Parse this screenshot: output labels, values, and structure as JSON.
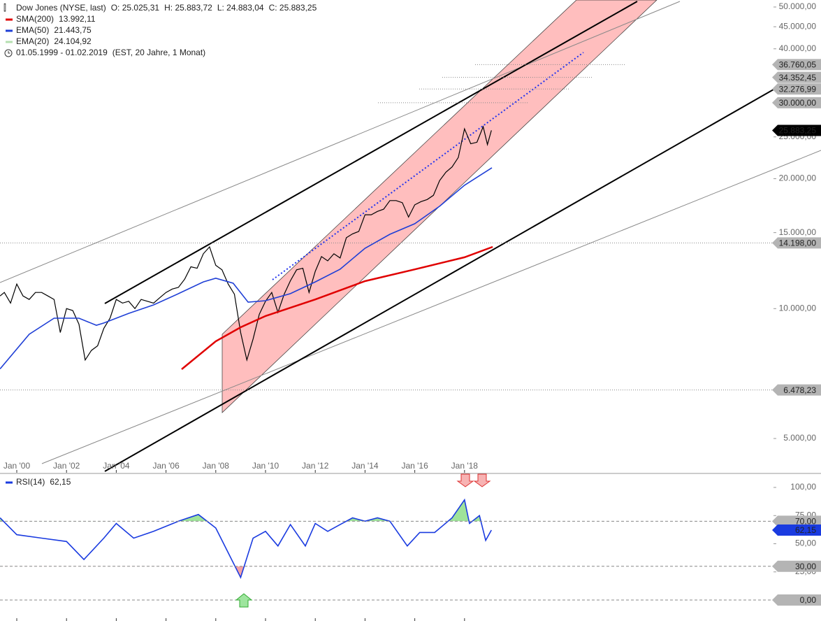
{
  "chart_data": [
    {
      "type": "line",
      "log_scale": true,
      "ohlc": [
        "O: 25.025,31",
        "H: 25.883,72",
        "L: 24.883,04",
        "C: 25.883,25"
      ],
      "date_range": "01.05.1999 - 01.02.2019",
      "period": "(EST, 20 Jahre, 1 Monat)",
      "xlim": [
        1999.326,
        2030.42
      ],
      "xticks": [
        {
          "value": 2000,
          "label": "Jan '00"
        },
        {
          "value": 2002,
          "label": "Jan '02"
        },
        {
          "value": 2004,
          "label": "Jan '04"
        },
        {
          "value": 2006,
          "label": "Jan '06"
        },
        {
          "value": 2008,
          "label": "Jan '08"
        },
        {
          "value": 2010,
          "label": "Jan '10"
        },
        {
          "value": 2012,
          "label": "Jan '12"
        },
        {
          "value": 2014,
          "label": "Jan '14"
        },
        {
          "value": 2016,
          "label": "Jan '16"
        },
        {
          "value": 2018,
          "label": "Jan '18"
        }
      ],
      "ylim": [
        4165,
        51900
      ],
      "yticks": [
        {
          "value": 5000,
          "label": "5.000,00"
        },
        {
          "value": 10000,
          "label": "10.000,00"
        },
        {
          "value": 15000,
          "label": "15.000,00"
        },
        {
          "value": 20000,
          "label": "20.000,00"
        },
        {
          "value": 25000,
          "label": "25.000,00"
        },
        {
          "value": 40000,
          "label": "40.000,00"
        },
        {
          "value": 45000,
          "label": "45.000,00"
        },
        {
          "value": 50000,
          "label": "50.000,00"
        }
      ],
      "levels": [
        {
          "value": 36760.05,
          "label": "36.760,05"
        },
        {
          "value": 34352.45,
          "label": "34.352,45"
        },
        {
          "value": 32276.99,
          "label": "32.276,99"
        },
        {
          "value": 30000,
          "label": "30.000,00"
        },
        {
          "value": 14198,
          "label": "14.198,00"
        },
        {
          "value": 6478.23,
          "label": "6.478,23"
        }
      ],
      "current": {
        "value": 25883.25,
        "label": "25.883,25",
        "color": "#000000"
      },
      "series": [
        {
          "name": "Dow Jones (NYSE, last)",
          "color": "#000000",
          "x": [
            1999.33,
            1999.5,
            1999.75,
            2000,
            2000.25,
            2000.5,
            2000.75,
            2001,
            2001.25,
            2001.5,
            2001.75,
            2002,
            2002.25,
            2002.5,
            2002.75,
            2003,
            2003.25,
            2003.5,
            2003.75,
            2004,
            2004.25,
            2004.5,
            2004.75,
            2005,
            2005.25,
            2005.5,
            2005.75,
            2006,
            2006.25,
            2006.5,
            2006.75,
            2007,
            2007.25,
            2007.5,
            2007.75,
            2008,
            2008.25,
            2008.5,
            2008.75,
            2009,
            2009.25,
            2009.5,
            2009.75,
            2010,
            2010.25,
            2010.5,
            2010.75,
            2011,
            2011.25,
            2011.5,
            2011.75,
            2012,
            2012.25,
            2012.5,
            2012.75,
            2013,
            2013.25,
            2013.5,
            2013.75,
            2014,
            2014.25,
            2014.5,
            2014.75,
            2015,
            2015.25,
            2015.5,
            2015.75,
            2016,
            2016.25,
            2016.5,
            2016.75,
            2017,
            2017.25,
            2017.5,
            2017.75,
            2018,
            2018.25,
            2018.5,
            2018.75,
            2018.92,
            2019.08
          ],
          "values": [
            10700,
            10900,
            10300,
            11400,
            10700,
            10500,
            10900,
            10900,
            10700,
            10500,
            8800,
            10000,
            9900,
            9200,
            7600,
            8000,
            8200,
            9000,
            9500,
            10500,
            10300,
            10400,
            10000,
            10500,
            10400,
            10300,
            10600,
            10900,
            11100,
            11200,
            11700,
            12500,
            12400,
            13400,
            13900,
            12600,
            12300,
            11400,
            10800,
            8800,
            7600,
            8500,
            9700,
            10400,
            10900,
            9800,
            10800,
            11600,
            12300,
            12400,
            10900,
            12200,
            13200,
            12900,
            13400,
            13100,
            14600,
            14900,
            15100,
            16500,
            16500,
            16800,
            17000,
            17800,
            17800,
            17600,
            16300,
            17400,
            17700,
            17900,
            18300,
            19800,
            20700,
            21300,
            22400,
            26100,
            24100,
            24300,
            26400,
            24000,
            25883.25
          ]
        },
        {
          "name": "SMA(200)",
          "color": "#e00000",
          "last": {
            "value": 13992.11,
            "label": "13.992,11"
          },
          "x": [
            2006.63,
            2008,
            2009,
            2010,
            2012,
            2014,
            2016,
            2018,
            2019.13
          ],
          "values": [
            7236,
            8400,
            9050,
            9610,
            10500,
            11580,
            12330,
            13150,
            13900
          ]
        },
        {
          "name": "EMA(50)",
          "color": "#1f3fd6",
          "last": {
            "value": 21443.75,
            "label": "21.443,75"
          },
          "x": [
            1999.33,
            2000.5,
            2001.5,
            2002.5,
            2003.2,
            2003.5,
            2004.5,
            2005.5,
            2006.5,
            2007.5,
            2008,
            2008.7,
            2009.3,
            2010,
            2011,
            2012,
            2013,
            2014,
            2015,
            2016,
            2017,
            2018,
            2019.1
          ],
          "values": [
            7250,
            8720,
            9500,
            9500,
            9150,
            9260,
            9750,
            10200,
            10830,
            11530,
            11760,
            11450,
            10350,
            10430,
            10830,
            11530,
            12340,
            13800,
            14870,
            15730,
            17270,
            19310,
            21200
          ]
        },
        {
          "name": "EMA(20)",
          "color": "#b5dfb0",
          "last": {
            "value": 24104.92,
            "label": "24.104,92"
          },
          "x": [],
          "values": []
        }
      ]
    },
    {
      "type": "line",
      "xlim": [
        1999.326,
        2030.42
      ],
      "xticks": [
        2000,
        2002,
        2004,
        2006,
        2008,
        2010,
        2012,
        2014,
        2016,
        2018
      ],
      "ylim": [
        -18.6,
        111.8
      ],
      "yticks": [
        {
          "value": 25,
          "label": "25,00"
        },
        {
          "value": 50,
          "label": "50,00"
        },
        {
          "value": 75,
          "label": "75,00"
        },
        {
          "value": 100,
          "label": "100,00"
        }
      ],
      "levels": [
        {
          "value": 70,
          "label": "70,00",
          "fill": "#9fe39a"
        },
        {
          "value": 30,
          "label": "30,00",
          "fill": "#f5a3a3"
        },
        {
          "value": 0,
          "label": "0,00"
        }
      ],
      "series": [
        {
          "name": "RSI(14)",
          "color": "#1a3be0",
          "last": {
            "value": 62.15,
            "label": "62,15"
          },
          "x": [
            1999.33,
            2000,
            2001,
            2002,
            2002.7,
            2003.5,
            2004,
            2004.7,
            2005.5,
            2006.5,
            2007.3,
            2008,
            2008.5,
            2009,
            2009.5,
            2010,
            2010.5,
            2011,
            2011.6,
            2012,
            2012.5,
            2013,
            2013.5,
            2014,
            2014.5,
            2015,
            2015.7,
            2016.2,
            2016.8,
            2017.5,
            2018,
            2018.2,
            2018.6,
            2018.85,
            2019.08
          ],
          "values": [
            73,
            58,
            55,
            52,
            36,
            55,
            68,
            55,
            61,
            70,
            76,
            64,
            42,
            20,
            55,
            61,
            48,
            67,
            48,
            68,
            61,
            67,
            73,
            70,
            73,
            70,
            48,
            60,
            60,
            73,
            89,
            68,
            75,
            53,
            62.15
          ]
        }
      ]
    }
  ]
}
